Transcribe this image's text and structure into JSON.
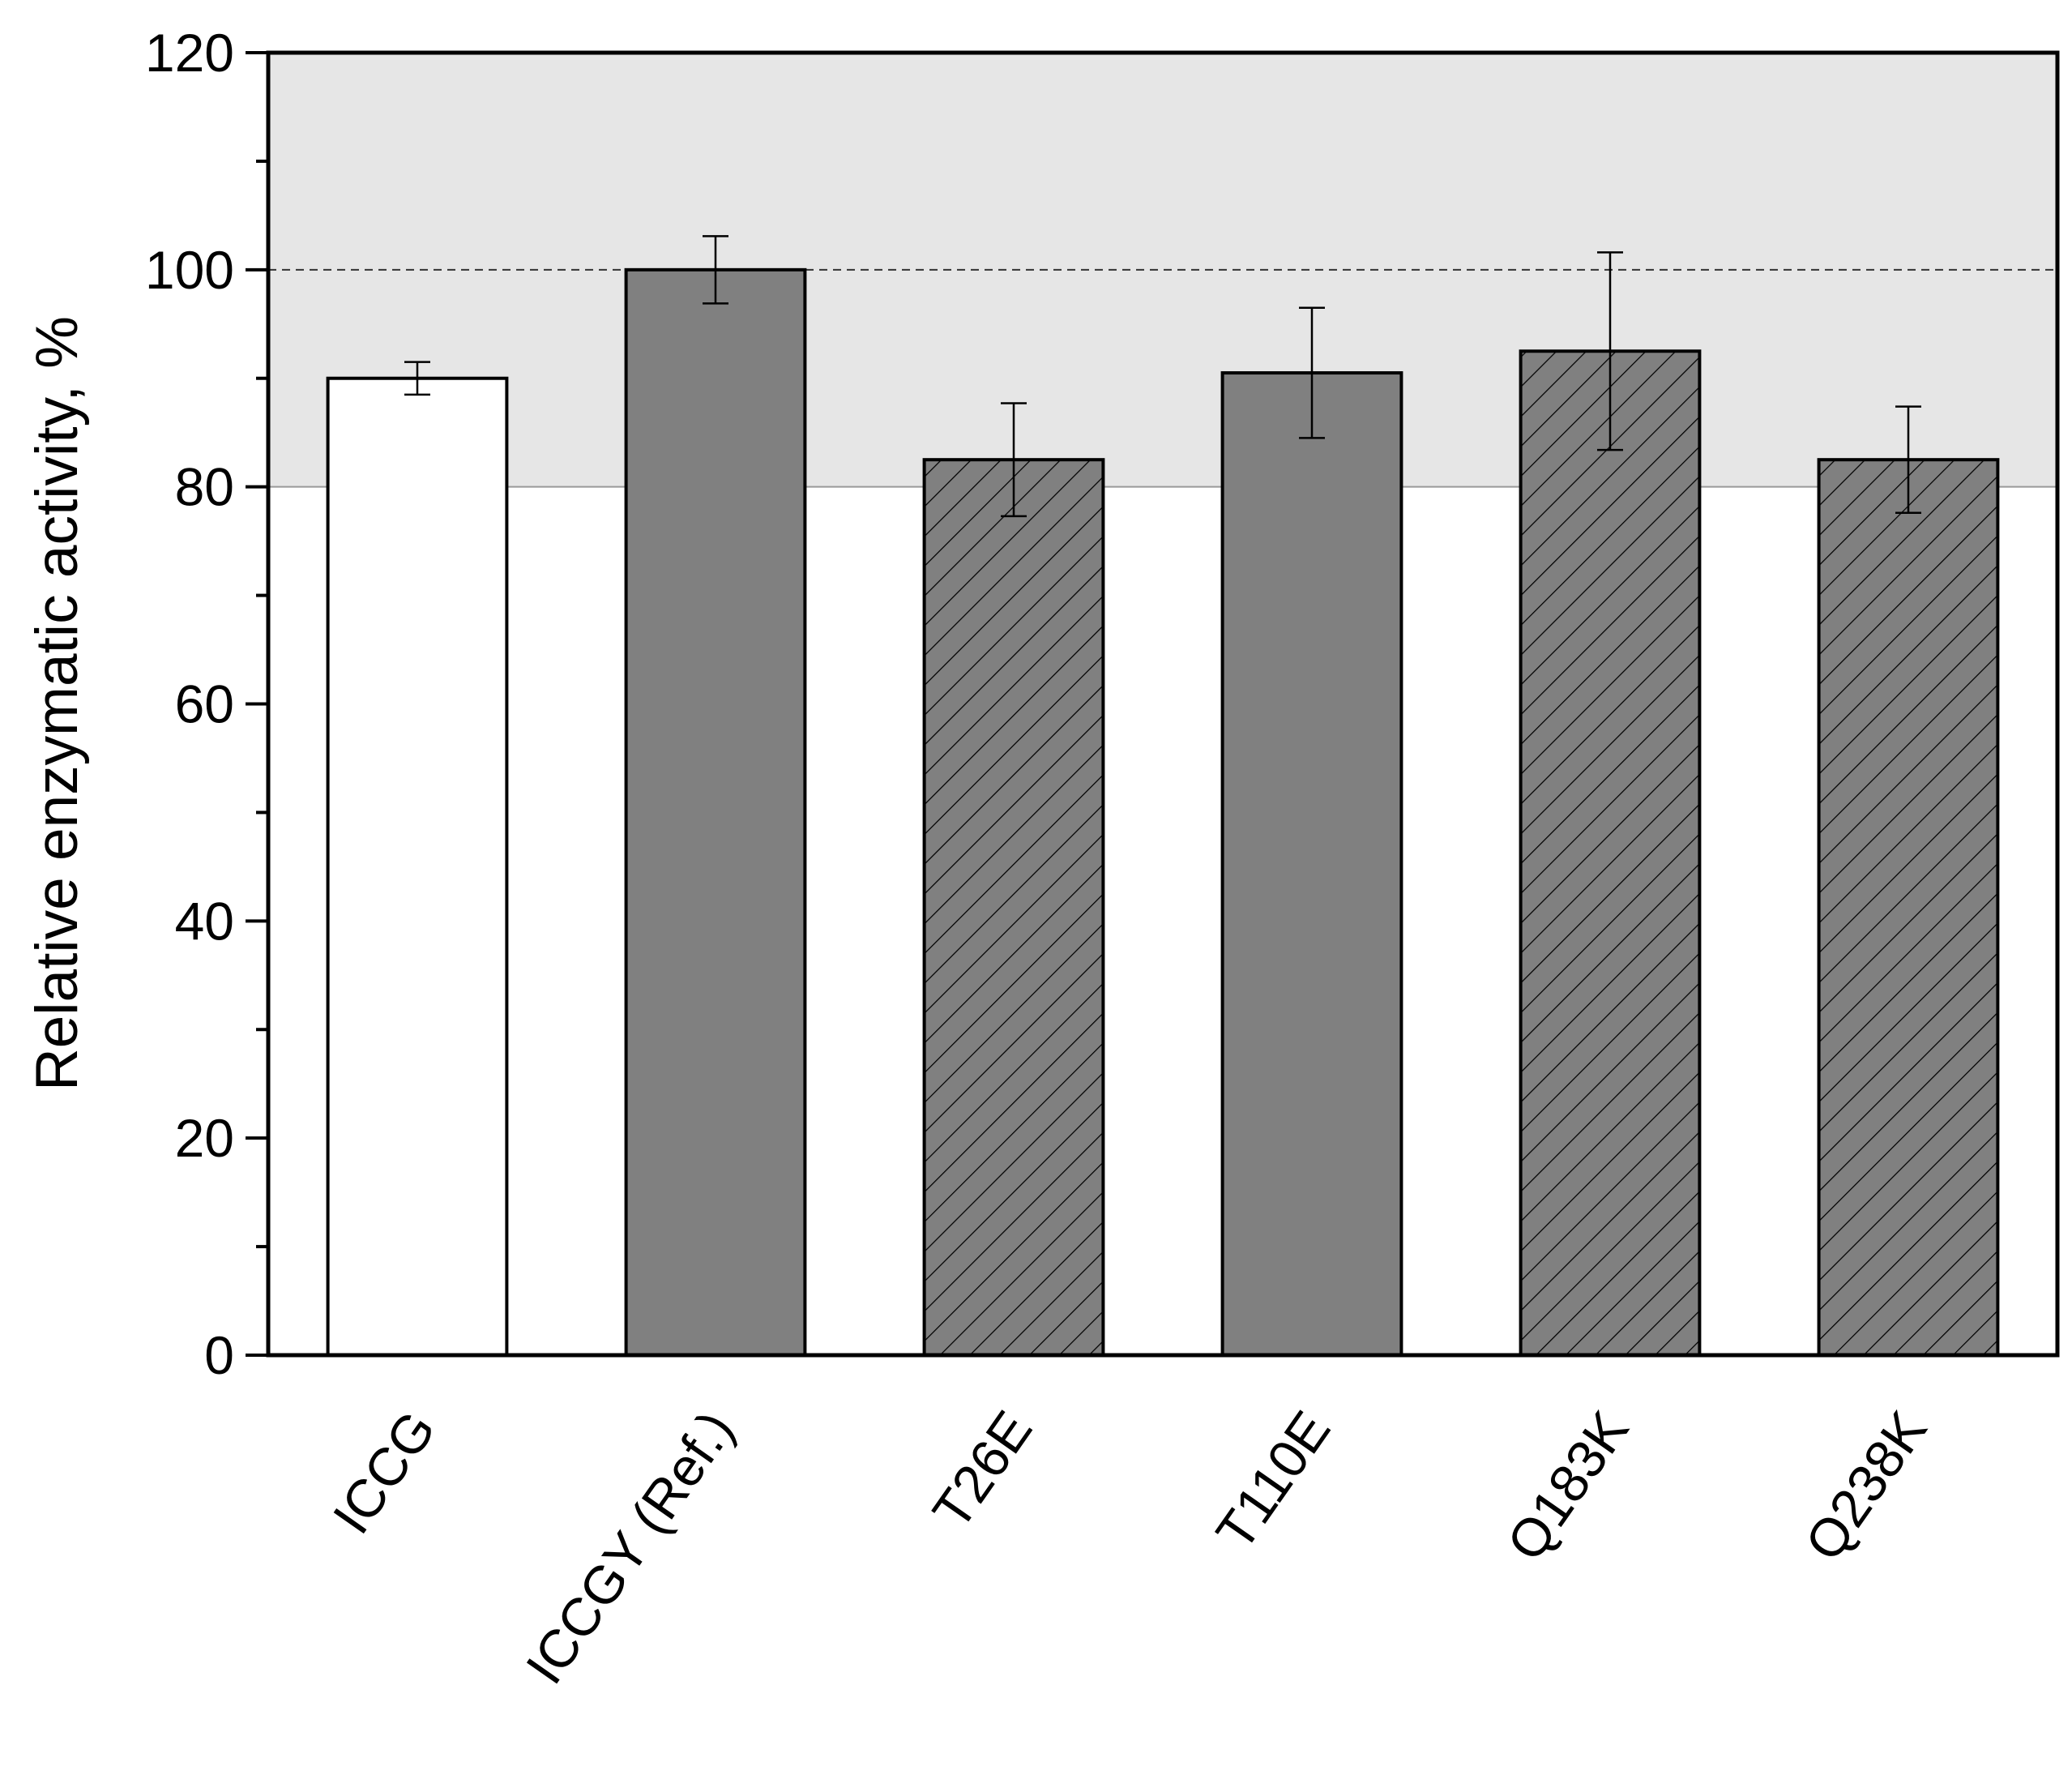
{
  "chart_data": {
    "type": "bar",
    "y_label": "Relative enzymatic activity, %",
    "categories": [
      "ICCG",
      "ICCGY (Ref.)",
      "T26E",
      "T110E",
      "Q183K",
      "Q238K"
    ],
    "values": [
      90,
      100,
      82.5,
      90.5,
      92.5,
      82.5
    ],
    "errors": [
      1.5,
      3.1,
      5.2,
      6,
      9.1,
      4.9
    ],
    "colors": [
      "#ffffff",
      "#808080",
      "#808080",
      "#808080",
      "#808080",
      "#808080"
    ],
    "hatch": [
      false,
      false,
      true,
      false,
      true,
      true
    ],
    "ylim": [
      0,
      120
    ],
    "yticks": [
      0,
      20,
      40,
      60,
      80,
      100,
      120
    ],
    "minor_tick_step": 10,
    "shaded_range": [
      80,
      120
    ],
    "shade_color": "#e6e6e6",
    "reference_line": 100
  }
}
